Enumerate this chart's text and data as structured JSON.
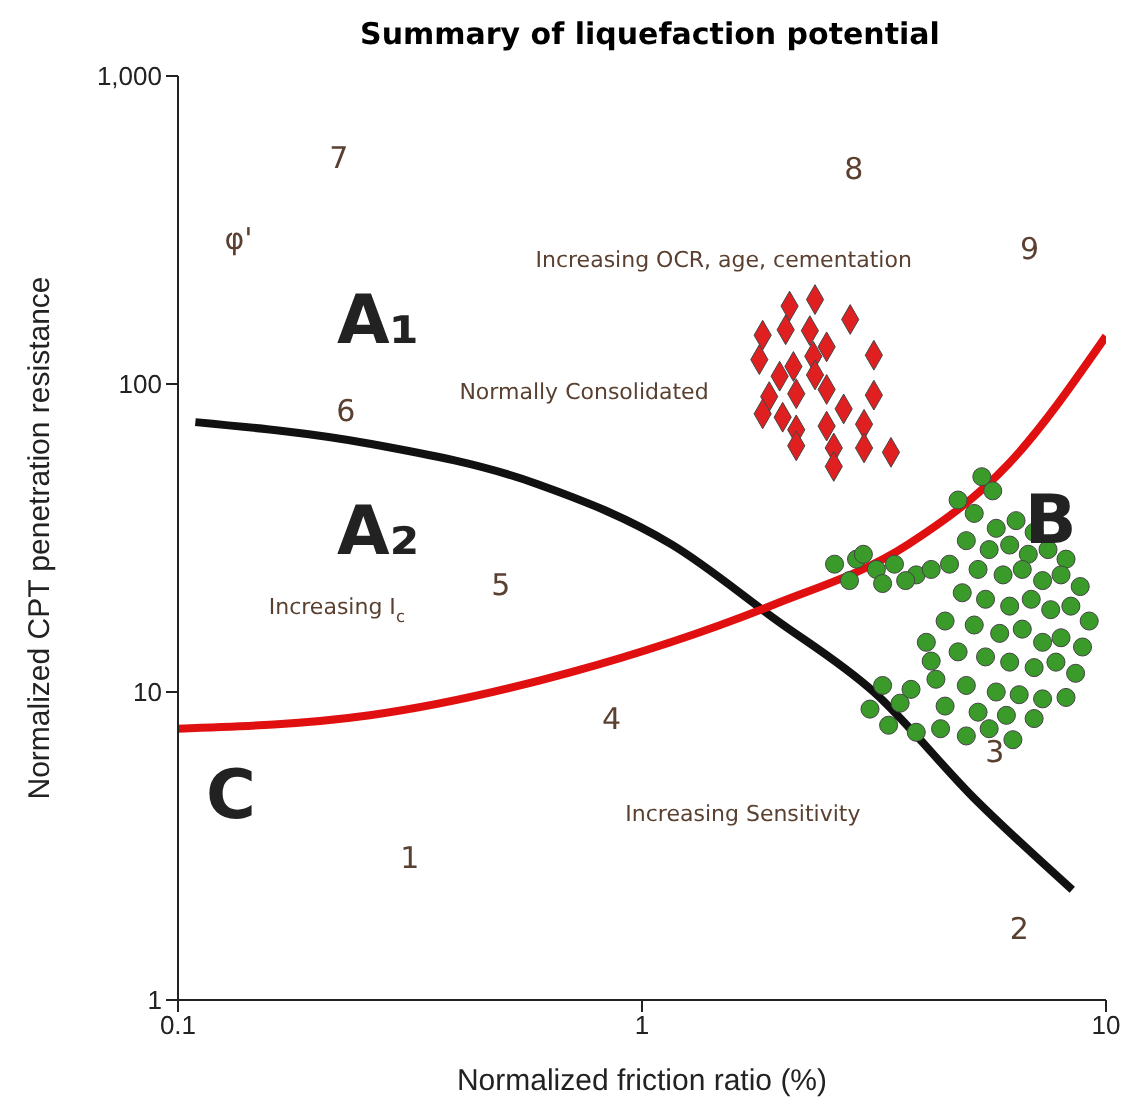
{
  "chart_data": {
    "type": "scatter",
    "title": "Summary of liquefaction potential",
    "xlabel": "Normalized friction ratio (%)",
    "ylabel": "Normalized CPT penetration resistance",
    "log": "xy",
    "grid": false,
    "legend": false,
    "xlim": [
      0.1,
      10
    ],
    "xticks": [
      0.1,
      1,
      10
    ],
    "ylim": [
      1,
      1000
    ],
    "yticks": [
      1,
      10,
      100,
      {
        "value": 1000,
        "label": "1,000"
      }
    ],
    "series": [
      {
        "marker": "diamond",
        "color": "#e02020",
        "x": [
          2.08,
          2.36,
          2.81,
          1.82,
          2.04,
          2.3,
          2.5,
          3.16,
          1.79,
          2.12,
          2.34,
          2.36,
          1.88,
          2.15,
          2.5,
          3.16,
          1.82,
          2.01,
          2.72,
          3.01,
          2.5,
          2.15,
          2.15,
          2.59,
          3.01,
          3.44,
          2.59,
          1.98
        ],
        "values": [
          179,
          188,
          162,
          144,
          150,
          149,
          132,
          124,
          120,
          114,
          123,
          107,
          91,
          93,
          96,
          92,
          80,
          78,
          83,
          74,
          73,
          71,
          63,
          62,
          62,
          60,
          54,
          106
        ]
      },
      {
        "marker": "circle",
        "color": "#3a9a2a",
        "x": [
          2.6,
          2.9,
          3.2,
          3.5,
          3.9,
          2.8,
          3.3,
          3.7,
          4.2,
          3.0,
          4.8,
          5.2,
          5.8,
          6.4,
          7.0,
          5.0,
          5.6,
          6.2,
          6.8,
          7.5,
          8.2,
          4.6,
          5.3,
          6.0,
          6.6,
          7.3,
          8.0,
          8.8,
          4.9,
          5.5,
          6.2,
          6.9,
          7.6,
          8.4,
          9.2,
          4.5,
          5.2,
          5.9,
          6.6,
          7.3,
          8.0,
          8.9,
          4.8,
          5.5,
          6.2,
          7.0,
          7.8,
          8.6,
          4.3,
          5.0,
          5.8,
          6.5,
          7.3,
          8.2,
          4.5,
          5.3,
          6.1,
          7.0,
          3.3,
          3.6,
          3.1,
          3.4,
          3.9,
          4.4,
          5.0,
          5.6,
          6.3,
          4.2,
          3.8,
          4.1,
          5.7,
          5.4
        ],
        "values": [
          26,
          27,
          25,
          26,
          24,
          23,
          22.5,
          23,
          25,
          28,
          42,
          38,
          34,
          36,
          33,
          31,
          29,
          30,
          28,
          29,
          27,
          26,
          25,
          24,
          25,
          23,
          24,
          22,
          21,
          20,
          19,
          20,
          18.5,
          19,
          17,
          17,
          16.5,
          15.5,
          16,
          14.5,
          15,
          14,
          13.5,
          13,
          12.5,
          12,
          12.5,
          11.5,
          11,
          10.5,
          10,
          9.8,
          9.5,
          9.6,
          9,
          8.6,
          8.4,
          8.2,
          10.5,
          9.2,
          8.8,
          7.8,
          7.4,
          7.6,
          7.2,
          7.6,
          7,
          12.6,
          10.2,
          14.5,
          45,
          50
        ]
      },
      {
        "type": "line",
        "marker": "none",
        "color": "#111111",
        "x": [
          0.109,
          0.259,
          0.596,
          1.16,
          1.92,
          3.16,
          5.22,
          8.46
        ],
        "values": [
          75.2,
          64,
          47.3,
          30.1,
          17.4,
          10,
          4.49,
          2.28
        ]
      },
      {
        "type": "line",
        "marker": "none",
        "color": "#e01010",
        "x": [
          0.1,
          0.259,
          0.704,
          1.92,
          3.74,
          6.17,
          10
        ],
        "values": [
          7.6,
          8.4,
          11.6,
          19.2,
          30.1,
          55.1,
          143
        ]
      }
    ],
    "annotations": [
      "7",
      "8",
      "9",
      "6",
      "5",
      "4",
      "3",
      "2",
      "1",
      "A₁",
      "A₂",
      "B",
      "C",
      "φ'",
      "Normally Consolidated",
      "Increasing OCR, age, cementation",
      "Increasing I$_{c}$",
      "Increasing Sensitivity"
    ]
  }
}
